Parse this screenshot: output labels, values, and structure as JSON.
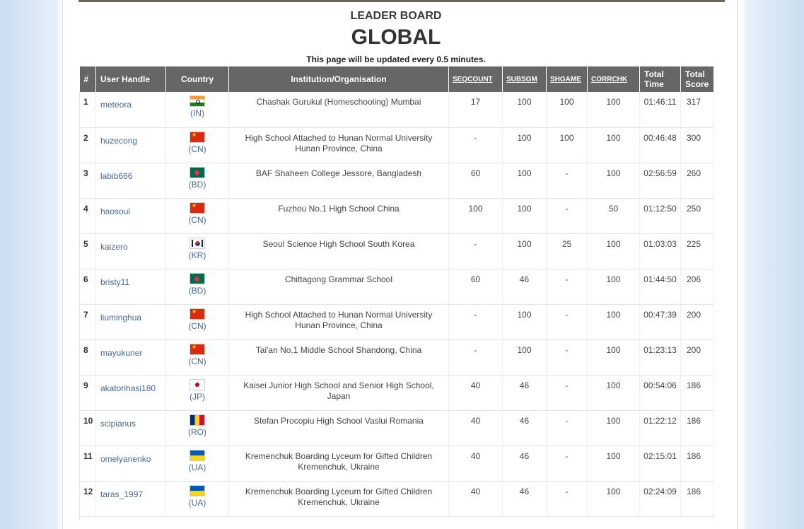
{
  "header": {
    "title": "LEADER BOARD",
    "subtitle": "GLOBAL",
    "note": "This page will be updated every 0.5 minutes."
  },
  "columns": [
    "#",
    "User Handle",
    "Country",
    "Institution/Organisation",
    "SEQCOUNT",
    "SUBSGM",
    "SHGAME",
    "CORRCHK",
    "Total Time",
    "Total Score"
  ],
  "rows": [
    {
      "rank": "1",
      "user": "meteora",
      "cc": "(IN)",
      "flag": "IN",
      "inst1": "Chashak Gurukul (Homeschooling) Mumbai",
      "inst2": "",
      "seqcount": "17",
      "subsgm": "100",
      "shgame": "100",
      "corrchk": "100",
      "time": "01:46:11",
      "score": "317"
    },
    {
      "rank": "2",
      "user": "huzecong",
      "cc": "(CN)",
      "flag": "CN",
      "inst1": "High School Attached to Hunan Normal University",
      "inst2": "Hunan Province, China",
      "seqcount": "-",
      "subsgm": "100",
      "shgame": "100",
      "corrchk": "100",
      "time": "00:46:48",
      "score": "300"
    },
    {
      "rank": "3",
      "user": "labib666",
      "cc": "(BD)",
      "flag": "BD",
      "inst1": "BAF Shaheen College Jessore, Bangladesh",
      "inst2": "",
      "seqcount": "60",
      "subsgm": "100",
      "shgame": "-",
      "corrchk": "100",
      "time": "02:56:59",
      "score": "260"
    },
    {
      "rank": "4",
      "user": "haosoul",
      "cc": "(CN)",
      "flag": "CN",
      "inst1": "Fuzhou No.1 High School China",
      "inst2": "",
      "seqcount": "100",
      "subsgm": "100",
      "shgame": "-",
      "corrchk": "50",
      "time": "01:12:50",
      "score": "250"
    },
    {
      "rank": "5",
      "user": "kaizero",
      "cc": "(KR)",
      "flag": "KR",
      "inst1": "Seoul Science High School South Korea",
      "inst2": "",
      "seqcount": "-",
      "subsgm": "100",
      "shgame": "25",
      "corrchk": "100",
      "time": "01:03:03",
      "score": "225"
    },
    {
      "rank": "6",
      "user": "bristy11",
      "cc": "(BD)",
      "flag": "BD",
      "inst1": "Chittagong Grammar School",
      "inst2": "",
      "seqcount": "60",
      "subsgm": "46",
      "shgame": "-",
      "corrchk": "100",
      "time": "01:44:50",
      "score": "206"
    },
    {
      "rank": "7",
      "user": "liuminghua",
      "cc": "(CN)",
      "flag": "CN",
      "inst1": "High School Attached to Hunan Normal University",
      "inst2": "Hunan Province, China",
      "seqcount": "-",
      "subsgm": "100",
      "shgame": "-",
      "corrchk": "100",
      "time": "00:47:39",
      "score": "200"
    },
    {
      "rank": "8",
      "user": "mayukuner",
      "cc": "(CN)",
      "flag": "CN",
      "inst1": "Tai'an No.1 Middle School Shandong, China",
      "inst2": "",
      "seqcount": "-",
      "subsgm": "100",
      "shgame": "-",
      "corrchk": "100",
      "time": "01:23:13",
      "score": "200"
    },
    {
      "rank": "9",
      "user": "akatorihasi180",
      "cc": "(JP)",
      "flag": "JP",
      "inst1": "Kaisei Junior High School and Senior High School,",
      "inst2": "Japan",
      "seqcount": "40",
      "subsgm": "46",
      "shgame": "-",
      "corrchk": "100",
      "time": "00:54:06",
      "score": "186"
    },
    {
      "rank": "10",
      "user": "scipianus",
      "cc": "(RO)",
      "flag": "RO",
      "inst1": "Stefan Procopiu High School Vaslui Romania",
      "inst2": "",
      "seqcount": "40",
      "subsgm": "46",
      "shgame": "-",
      "corrchk": "100",
      "time": "01:22:12",
      "score": "186"
    },
    {
      "rank": "11",
      "user": "omelyanenko",
      "cc": "(UA)",
      "flag": "UA",
      "inst1": "Kremenchuk Boarding Lyceum for Gifted Children",
      "inst2": "Kremenchuk, Ukraine",
      "seqcount": "40",
      "subsgm": "46",
      "shgame": "-",
      "corrchk": "100",
      "time": "02:15:01",
      "score": "186"
    },
    {
      "rank": "12",
      "user": "taras_1997",
      "cc": "(UA)",
      "flag": "UA",
      "inst1": "Kremenchuk Boarding Lyceum for Gifted Children",
      "inst2": "Kremenchuk, Ukraine",
      "seqcount": "40",
      "subsgm": "46",
      "shgame": "-",
      "corrchk": "100",
      "time": "02:24:09",
      "score": "186"
    }
  ]
}
